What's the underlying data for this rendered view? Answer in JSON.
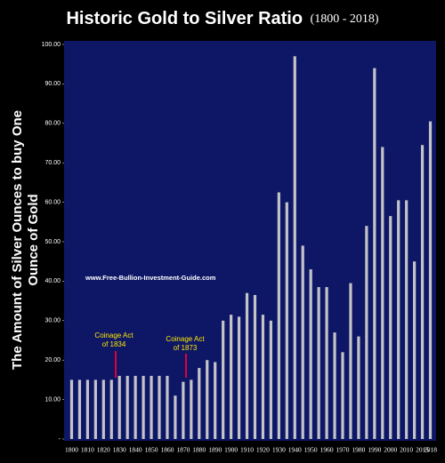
{
  "chart_data": {
    "type": "bar",
    "title": "Historic Gold to Silver Ratio",
    "subtitle": "(1800 - 2018)",
    "ylabel": [
      "The Amount of Silver Ounces to buy One",
      "Ounce of Gold"
    ],
    "watermark": "www.Free-Bullion-Investment-Guide.com",
    "annotations": [
      {
        "lines": [
          "Coinage Act",
          "of 1834"
        ]
      },
      {
        "lines": [
          "Coinage Act",
          "of 1873"
        ]
      }
    ],
    "categories": [
      "1800",
      null,
      "1810",
      null,
      "1820",
      null,
      "1830",
      null,
      "1840",
      null,
      "1850",
      null,
      "1860",
      null,
      "1870",
      null,
      "1880",
      null,
      "1890",
      null,
      "1900",
      null,
      "1910",
      null,
      "1920",
      null,
      "1930",
      null,
      "1940",
      null,
      "1950",
      null,
      "1960",
      null,
      "1970",
      null,
      "1980",
      null,
      "1990",
      null,
      "2000",
      null,
      "2010",
      null,
      "2015",
      "2018"
    ],
    "values": [
      15,
      15,
      15,
      15,
      15,
      15,
      16,
      16,
      16,
      16,
      16,
      16,
      16,
      11,
      14.5,
      15,
      18,
      20,
      19.5,
      30,
      31.5,
      31,
      37,
      36.5,
      31.5,
      30,
      62.5,
      60,
      97,
      49,
      43,
      38.5,
      38.5,
      27,
      22,
      39.5,
      26,
      54,
      94,
      74,
      56.5,
      60.5,
      60.5,
      45,
      74.5,
      80.5
    ],
    "color": "#c4c4c8",
    "ylim": [
      0,
      100
    ],
    "yticks": [
      {
        "value": 0,
        "label": "-"
      },
      {
        "value": 10,
        "label": "10.00"
      },
      {
        "value": 20,
        "label": "20.00"
      },
      {
        "value": 30,
        "label": "30.00"
      },
      {
        "value": 40,
        "label": "40.00"
      },
      {
        "value": 50,
        "label": "50.00"
      },
      {
        "value": 60,
        "label": "60.00"
      },
      {
        "value": 70,
        "label": "70.00"
      },
      {
        "value": 80,
        "label": "80.00"
      },
      {
        "value": 90,
        "label": "90.00"
      },
      {
        "value": 100,
        "label": "100.00"
      }
    ],
    "grid": false
  }
}
